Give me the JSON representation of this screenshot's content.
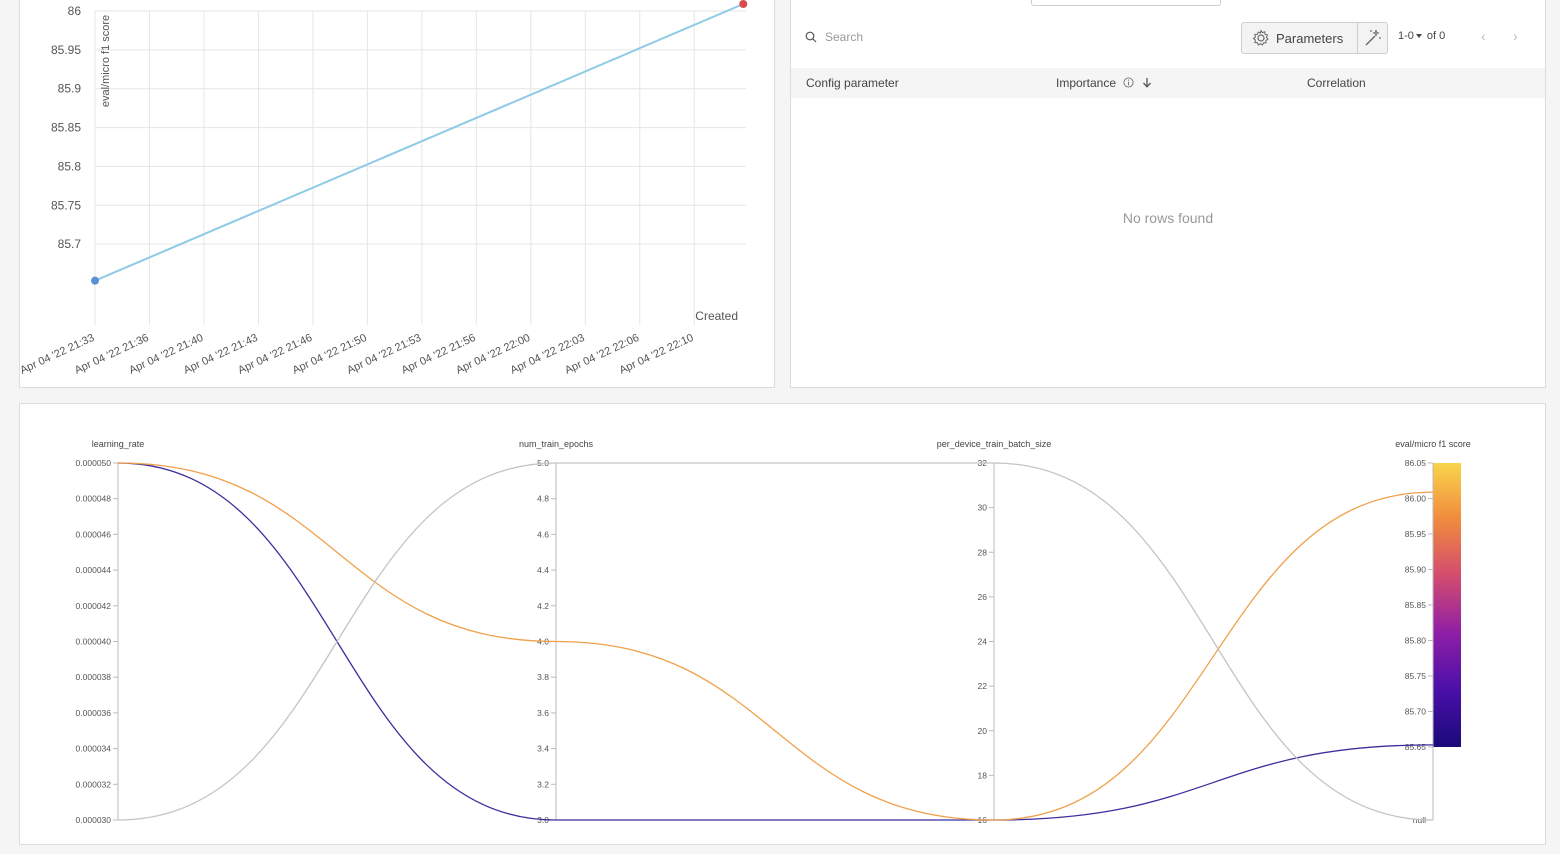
{
  "scatter": {
    "y_axis_label": "eval/micro f1 score",
    "x_axis_label": "Created",
    "chart_data": {
      "type": "scatter",
      "xlabel": "Created",
      "ylabel": "eval/micro f1 score",
      "ylim": [
        85.653,
        86.02
      ],
      "y_ticks": [
        "86",
        "85.95",
        "85.9",
        "85.85",
        "85.8",
        "85.75",
        "85.7"
      ],
      "x_ticks": [
        "Apr 04 '22 21:33",
        "Apr 04 '22 21:36",
        "Apr 04 '22 21:40",
        "Apr 04 '22 21:43",
        "Apr 04 '22 21:46",
        "Apr 04 '22 21:50",
        "Apr 04 '22 21:53",
        "Apr 04 '22 21:56",
        "Apr 04 '22 22:00",
        "Apr 04 '22 22:03",
        "Apr 04 '22 22:06",
        "Apr 04 '22 22:10"
      ],
      "points": [
        {
          "x_tick_index": 0,
          "y": 85.653,
          "color": "#5b8fd6"
        },
        {
          "x_tick_index": 11.9,
          "y": 86.009,
          "color": "#dc4b4b"
        }
      ],
      "line_color": "#8ecae6",
      "grid": true
    }
  },
  "importance": {
    "search_placeholder": "Search",
    "parameters_label": "Parameters",
    "pagination": "1-0",
    "pagination_of": "of 0",
    "columns": [
      "Config parameter",
      "Importance",
      "Correlation"
    ],
    "empty_message": "No rows found"
  },
  "parallel": {
    "chart_data": {
      "type": "parallel_coordinates",
      "axes": [
        {
          "name": "learning_rate",
          "ticks": [
            "0.000050",
            "0.000048",
            "0.000046",
            "0.000044",
            "0.000042",
            "0.000040",
            "0.000038",
            "0.000036",
            "0.000034",
            "0.000032",
            "0.000030"
          ],
          "range": [
            3e-05,
            5e-05
          ]
        },
        {
          "name": "num_train_epochs",
          "ticks": [
            "5.0",
            "4.8",
            "4.6",
            "4.4",
            "4.2",
            "4.0",
            "3.8",
            "3.6",
            "3.4",
            "3.2",
            "3.0"
          ],
          "range": [
            3.0,
            5.0
          ]
        },
        {
          "name": "per_device_train_batch_size",
          "ticks": [
            "32",
            "30",
            "28",
            "26",
            "24",
            "22",
            "20",
            "18",
            "16"
          ],
          "range": [
            16,
            32
          ]
        },
        {
          "name": "eval/micro f1 score",
          "ticks": [
            "86.05",
            "86.00",
            "85.95",
            "85.90",
            "85.85",
            "85.80",
            "85.75",
            "85.70",
            "85.65",
            "null"
          ],
          "range": [
            85.65,
            86.05
          ]
        }
      ],
      "runs": [
        {
          "values": [
            5e-05,
            3.0,
            16,
            85.653
          ],
          "color": "#3b2f9e"
        },
        {
          "values": [
            5e-05,
            4.0,
            16,
            86.009
          ],
          "color": "#f0a04b"
        },
        {
          "values": [
            3e-05,
            5.0,
            32,
            null
          ],
          "color": "#c4c4c4"
        }
      ],
      "colorscale": [
        "#f9d44a",
        "#f08a3e",
        "#d24b6f",
        "#8e1fa6",
        "#4a0fa8",
        "#1a0a7a"
      ]
    }
  }
}
